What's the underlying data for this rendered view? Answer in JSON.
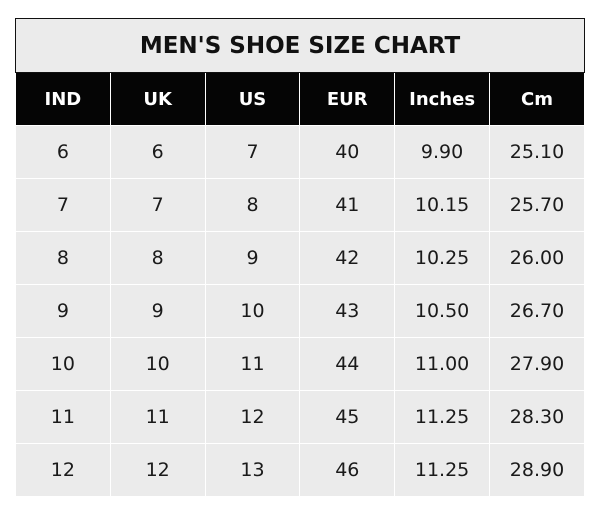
{
  "chart_data": {
    "type": "table",
    "title": "MEN'S SHOE SIZE CHART",
    "columns": [
      "IND",
      "UK",
      "US",
      "EUR",
      "Inches",
      "Cm"
    ],
    "rows": [
      [
        "6",
        "6",
        "7",
        "40",
        "9.90",
        "25.10"
      ],
      [
        "7",
        "7",
        "8",
        "41",
        "10.15",
        "25.70"
      ],
      [
        "8",
        "8",
        "9",
        "42",
        "10.25",
        "26.00"
      ],
      [
        "9",
        "9",
        "10",
        "43",
        "10.50",
        "26.70"
      ],
      [
        "10",
        "10",
        "11",
        "44",
        "11.00",
        "27.90"
      ],
      [
        "11",
        "11",
        "12",
        "45",
        "11.25",
        "28.30"
      ],
      [
        "12",
        "12",
        "13",
        "46",
        "11.25",
        "28.90"
      ]
    ],
    "colors": {
      "header_bg": "#050505",
      "header_text": "#ffffff",
      "cell_bg": "#ebebeb",
      "grid": "#ffffff"
    }
  }
}
